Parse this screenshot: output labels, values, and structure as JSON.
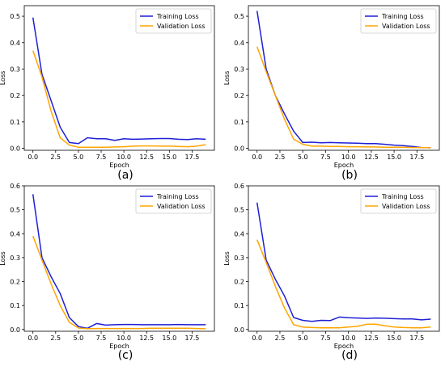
{
  "colors": {
    "training": "#1f1fd6",
    "validation": "#ffa500",
    "axis": "#000000"
  },
  "chart_data": [
    {
      "type": "line",
      "caption": "(a)",
      "xlabel": "Epoch",
      "ylabel": "Loss",
      "xlim": [
        -0.95,
        19.95
      ],
      "ylim": [
        -0.0075,
        0.54
      ],
      "xticks": [
        0.0,
        2.5,
        5.0,
        7.5,
        10.0,
        12.5,
        15.0,
        17.5
      ],
      "xtick_labels": [
        "0.0",
        "2.5",
        "5.0",
        "7.5",
        "10.0",
        "12.5",
        "15.0",
        "17.5"
      ],
      "yticks": [
        0.0,
        0.1,
        0.2,
        0.3,
        0.4,
        0.5
      ],
      "ytick_labels": [
        "0.0",
        "0.1",
        "0.2",
        "0.3",
        "0.4",
        "0.5"
      ],
      "legend_position": "top-right",
      "x": [
        0,
        1,
        2,
        3,
        4,
        5,
        6,
        7,
        8,
        9,
        10,
        11,
        12,
        13,
        14,
        15,
        16,
        17,
        18,
        19
      ],
      "series": [
        {
          "name": "Training Loss",
          "color": "#1f1fd6",
          "values": [
            0.495,
            0.28,
            0.18,
            0.08,
            0.022,
            0.018,
            0.04,
            0.036,
            0.036,
            0.03,
            0.036,
            0.034,
            0.035,
            0.036,
            0.037,
            0.037,
            0.034,
            0.033,
            0.036,
            0.034
          ]
        },
        {
          "name": "Validation Loss",
          "color": "#ffa500",
          "values": [
            0.37,
            0.27,
            0.14,
            0.04,
            0.012,
            0.004,
            0.004,
            0.004,
            0.004,
            0.005,
            0.006,
            0.008,
            0.009,
            0.009,
            0.008,
            0.008,
            0.007,
            0.006,
            0.008,
            0.014
          ]
        }
      ]
    },
    {
      "type": "line",
      "caption": "(b)",
      "xlabel": "Epoch",
      "ylabel": "Loss",
      "xlim": [
        -0.95,
        19.95
      ],
      "ylim": [
        -0.0075,
        0.54
      ],
      "xticks": [
        0.0,
        2.5,
        5.0,
        7.5,
        10.0,
        12.5,
        15.0,
        17.5
      ],
      "xtick_labels": [
        "0.0",
        "2.5",
        "5.0",
        "7.5",
        "10.0",
        "12.5",
        "15.0",
        "17.5"
      ],
      "yticks": [
        0.0,
        0.1,
        0.2,
        0.3,
        0.4,
        0.5
      ],
      "ytick_labels": [
        "0.0",
        "0.1",
        "0.2",
        "0.3",
        "0.4",
        "0.5"
      ],
      "legend_position": "top-right",
      "x": [
        0,
        1,
        2,
        3,
        4,
        5,
        6,
        7,
        8,
        9,
        10,
        11,
        12,
        13,
        14,
        15,
        16,
        17,
        18,
        19
      ],
      "series": [
        {
          "name": "Training Loss",
          "color": "#1f1fd6",
          "values": [
            0.52,
            0.3,
            0.2,
            0.13,
            0.065,
            0.022,
            0.023,
            0.021,
            0.022,
            0.021,
            0.02,
            0.019,
            0.018,
            0.018,
            0.015,
            0.012,
            0.01,
            0.007,
            0.003,
            0.002
          ]
        },
        {
          "name": "Validation Loss",
          "color": "#ffa500",
          "values": [
            0.385,
            0.29,
            0.2,
            0.11,
            0.035,
            0.015,
            0.008,
            0.008,
            0.007,
            0.007,
            0.006,
            0.006,
            0.005,
            0.005,
            0.004,
            0.004,
            0.004,
            0.003,
            0.003,
            0.002
          ]
        }
      ]
    },
    {
      "type": "line",
      "caption": "(c)",
      "xlabel": "Epoch",
      "ylabel": "Loss",
      "xlim": [
        -0.95,
        19.95
      ],
      "ylim": [
        -0.0075,
        0.6
      ],
      "xticks": [
        0.0,
        2.5,
        5.0,
        7.5,
        10.0,
        12.5,
        15.0,
        17.5
      ],
      "xtick_labels": [
        "0.0",
        "2.5",
        "5.0",
        "7.5",
        "10.0",
        "12.5",
        "15.0",
        "17.5"
      ],
      "yticks": [
        0.0,
        0.1,
        0.2,
        0.3,
        0.4,
        0.5,
        0.6
      ],
      "ytick_labels": [
        "0.0",
        "0.1",
        "0.2",
        "0.3",
        "0.4",
        "0.5",
        "0.6"
      ],
      "legend_position": "top-right",
      "x": [
        0,
        1,
        2,
        3,
        4,
        5,
        6,
        7,
        8,
        9,
        10,
        11,
        12,
        13,
        14,
        15,
        16,
        17,
        18,
        19
      ],
      "series": [
        {
          "name": "Training Loss",
          "color": "#1f1fd6",
          "values": [
            0.565,
            0.3,
            0.22,
            0.15,
            0.05,
            0.012,
            0.005,
            0.025,
            0.018,
            0.02,
            0.021,
            0.021,
            0.02,
            0.02,
            0.02,
            0.02,
            0.021,
            0.02,
            0.02,
            0.02
          ]
        },
        {
          "name": "Validation Loss",
          "color": "#ffa500",
          "values": [
            0.39,
            0.29,
            0.19,
            0.1,
            0.03,
            0.006,
            0.003,
            0.004,
            0.004,
            0.004,
            0.004,
            0.004,
            0.004,
            0.005,
            0.005,
            0.005,
            0.005,
            0.005,
            0.004,
            0.003
          ]
        }
      ]
    },
    {
      "type": "line",
      "caption": "(d)",
      "xlabel": "Epoch",
      "ylabel": "Loss",
      "xlim": [
        -0.95,
        19.95
      ],
      "ylim": [
        -0.0075,
        0.6
      ],
      "xticks": [
        0.0,
        2.5,
        5.0,
        7.5,
        10.0,
        12.5,
        15.0,
        17.5
      ],
      "xtick_labels": [
        "0.0",
        "2.5",
        "5.0",
        "7.5",
        "10.0",
        "12.5",
        "15.0",
        "17.5"
      ],
      "yticks": [
        0.0,
        0.1,
        0.2,
        0.3,
        0.4,
        0.5,
        0.6
      ],
      "ytick_labels": [
        "0.0",
        "0.1",
        "0.2",
        "0.3",
        "0.4",
        "0.5",
        "0.6"
      ],
      "legend_position": "top-right",
      "x": [
        0,
        1,
        2,
        3,
        4,
        5,
        6,
        7,
        8,
        9,
        10,
        11,
        12,
        13,
        14,
        15,
        16,
        17,
        18,
        19
      ],
      "series": [
        {
          "name": "Training Loss",
          "color": "#1f1fd6",
          "values": [
            0.53,
            0.29,
            0.21,
            0.14,
            0.05,
            0.038,
            0.034,
            0.038,
            0.037,
            0.052,
            0.049,
            0.048,
            0.046,
            0.048,
            0.047,
            0.045,
            0.044,
            0.044,
            0.04,
            0.043
          ]
        },
        {
          "name": "Validation Loss",
          "color": "#ffa500",
          "values": [
            0.375,
            0.28,
            0.18,
            0.09,
            0.02,
            0.01,
            0.008,
            0.007,
            0.007,
            0.007,
            0.01,
            0.013,
            0.022,
            0.022,
            0.015,
            0.01,
            0.008,
            0.007,
            0.007,
            0.01
          ]
        }
      ]
    }
  ]
}
